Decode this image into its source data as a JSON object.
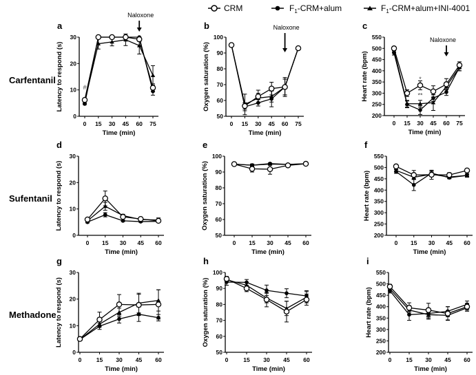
{
  "legend": [
    {
      "key": "crm",
      "label": "CRM"
    },
    {
      "key": "alum",
      "label_main": "F",
      "label_sub": "1",
      "label_rest": "-CRM+alum"
    },
    {
      "key": "ini",
      "label_main": "F",
      "label_sub": "1",
      "label_rest": "-CRM+alum+INI-4001"
    }
  ],
  "rows": [
    {
      "label": "Carfentanil"
    },
    {
      "label": "Sufentanil"
    },
    {
      "label": "Methadone"
    }
  ],
  "chart_data": [
    {
      "id": "a",
      "type": "line",
      "title": "a",
      "xlabel": "Time (min)",
      "ylabel": "Latency to respond (s)",
      "x": [
        0,
        15,
        30,
        45,
        60,
        75
      ],
      "ylim": [
        0,
        30
      ],
      "yticks": [
        0,
        10,
        20,
        30
      ],
      "series": [
        {
          "name": "CRM",
          "key": "crm",
          "values": [
            6.2,
            30,
            30,
            30,
            29.2,
            10.8
          ],
          "err": [
            0.5,
            0,
            0,
            0,
            0.8,
            1.5
          ]
        },
        {
          "name": "F1-CRM+alum",
          "key": "alum",
          "values": [
            4.7,
            30,
            30,
            30,
            30,
            9.5
          ],
          "err": [
            0.3,
            0,
            0,
            0,
            0,
            1.5
          ]
        },
        {
          "name": "F1-CRM+alum+INI-4001",
          "key": "ini",
          "values": [
            5.5,
            27.5,
            28.2,
            29,
            26.8,
            15.5
          ],
          "err": [
            0.5,
            2,
            1.5,
            2.2,
            3.2,
            3.7
          ]
        }
      ],
      "annotations": [
        {
          "text": "Naloxone",
          "type": "arrow",
          "x": 60
        },
        {
          "text": "#",
          "type": "mark",
          "x": 0,
          "y": 11
        }
      ]
    },
    {
      "id": "b",
      "type": "line",
      "title": "b",
      "xlabel": "Time (min)",
      "ylabel": "Oxygen saturation (%)",
      "x": [
        0,
        15,
        30,
        45,
        60,
        75
      ],
      "ylim": [
        50,
        100
      ],
      "yticks": [
        50,
        60,
        70,
        80,
        90,
        100
      ],
      "series": [
        {
          "name": "CRM",
          "key": "crm",
          "values": [
            95,
            56.5,
            62.5,
            67.5,
            68.5,
            93
          ],
          "err": [
            0.5,
            2,
            4,
            4,
            5,
            0.5
          ]
        },
        {
          "name": "F1-CRM+alum",
          "key": "alum",
          "values": [
            95,
            56,
            58.5,
            61,
            68.5,
            93
          ],
          "err": [
            0.5,
            2.5,
            2,
            5,
            5,
            0.5
          ]
        },
        {
          "name": "F1-CRM+alum+INI-4001",
          "key": "ini",
          "values": [
            95,
            57.5,
            61.5,
            62.5,
            68.5,
            93
          ],
          "err": [
            0.5,
            6.5,
            3,
            3.5,
            6,
            0.5
          ]
        }
      ],
      "annotations": [
        {
          "text": "Naloxone",
          "type": "arrow",
          "x": 60
        }
      ]
    },
    {
      "id": "c",
      "type": "line",
      "title": "c",
      "xlabel": "Time (min)",
      "ylabel": "Heart rate (bpm)",
      "x": [
        0,
        15,
        30,
        45,
        60,
        75
      ],
      "ylim": [
        200,
        550
      ],
      "yticks": [
        200,
        250,
        300,
        350,
        400,
        450,
        500,
        550
      ],
      "series": [
        {
          "name": "CRM",
          "key": "crm",
          "values": [
            500,
            300,
            335,
            308,
            340,
            425
          ],
          "err": [
            8,
            15,
            20,
            25,
            25,
            15
          ]
        },
        {
          "name": "F1-CRM+alum",
          "key": "alum",
          "values": [
            480,
            250,
            225,
            278,
            305,
            415
          ],
          "err": [
            10,
            15,
            20,
            15,
            15,
            15
          ]
        },
        {
          "name": "F1-CRM+alum+INI-4001",
          "key": "ini",
          "values": [
            490,
            253,
            253,
            258,
            330,
            415
          ],
          "err": [
            8,
            15,
            15,
            35,
            15,
            15
          ]
        }
      ],
      "annotations": [
        {
          "text": "Naloxone",
          "type": "arrow",
          "x": 60
        },
        {
          "text": "*",
          "type": "mark",
          "x": 30,
          "y": 362
        },
        {
          "text": "**",
          "type": "mark",
          "x": 30,
          "y": 290
        }
      ]
    },
    {
      "id": "d",
      "type": "line",
      "title": "d",
      "xlabel": "Time (min)",
      "ylabel": "Latency to respond (s)",
      "x": [
        0,
        15,
        30,
        45,
        60
      ],
      "ylim": [
        0,
        30
      ],
      "yticks": [
        0,
        10,
        20,
        30
      ],
      "series": [
        {
          "name": "CRM",
          "key": "crm",
          "values": [
            6,
            14,
            7,
            6.2,
            5.5
          ],
          "err": [
            0.3,
            2.8,
            0.6,
            0.3,
            0.5
          ]
        },
        {
          "name": "F1-CRM+alum",
          "key": "alum",
          "values": [
            5,
            7.8,
            5.5,
            5.2,
            5.3
          ],
          "err": [
            0.3,
            0.8,
            0.3,
            0.3,
            0.3
          ]
        },
        {
          "name": "F1-CRM+alum+INI-4001",
          "key": "ini",
          "values": [
            5.5,
            11,
            7.5,
            6,
            5.8
          ],
          "err": [
            0.3,
            1.5,
            0.5,
            0.3,
            0.8
          ]
        }
      ],
      "annotations": []
    },
    {
      "id": "e",
      "type": "line",
      "title": "e",
      "xlabel": "Time (min)",
      "ylabel": "Oxygen saturation (%)",
      "x": [
        0,
        15,
        30,
        45,
        60
      ],
      "ylim": [
        50,
        100
      ],
      "yticks": [
        50,
        60,
        70,
        80,
        90,
        100
      ],
      "series": [
        {
          "name": "CRM",
          "key": "crm",
          "values": [
            95,
            92,
            91.8,
            94.2,
            95.2
          ],
          "err": [
            0.5,
            2,
            3.2,
            0.5,
            0.5
          ]
        },
        {
          "name": "F1-CRM+alum",
          "key": "alum",
          "values": [
            95,
            94.3,
            95.3,
            94.8,
            95.2
          ],
          "err": [
            0.5,
            0.8,
            0.5,
            0.5,
            0.5
          ]
        },
        {
          "name": "F1-CRM+alum+INI-4001",
          "key": "ini",
          "values": [
            95,
            94.3,
            95,
            94.8,
            95.2
          ],
          "err": [
            0.5,
            0.5,
            0.5,
            0.5,
            0.5
          ]
        }
      ],
      "annotations": []
    },
    {
      "id": "f",
      "type": "line",
      "title": "f",
      "xlabel": "Time (min)",
      "ylabel": "Heart rate (bpm)",
      "x": [
        0,
        15,
        30,
        45,
        60
      ],
      "ylim": [
        200,
        550
      ],
      "yticks": [
        200,
        250,
        300,
        350,
        400,
        450,
        500,
        550
      ],
      "series": [
        {
          "name": "CRM",
          "key": "crm",
          "values": [
            505,
            467,
            468,
            467,
            487
          ],
          "err": [
            5,
            20,
            20,
            10,
            5
          ]
        },
        {
          "name": "F1-CRM+alum",
          "key": "alum",
          "values": [
            482,
            423,
            475,
            455,
            465
          ],
          "err": [
            8,
            25,
            10,
            5,
            8
          ]
        },
        {
          "name": "F1-CRM+alum+INI-4001",
          "key": "ini",
          "values": [
            487,
            457,
            470,
            458,
            465
          ],
          "err": [
            5,
            10,
            10,
            5,
            5
          ]
        }
      ],
      "annotations": []
    },
    {
      "id": "g",
      "type": "line",
      "title": "g",
      "xlabel": "Time (min)",
      "ylabel": "Latency to respond (s)",
      "x": [
        0,
        15,
        30,
        45,
        60
      ],
      "ylim": [
        0,
        30
      ],
      "yticks": [
        0,
        10,
        20,
        30
      ],
      "series": [
        {
          "name": "CRM",
          "key": "crm",
          "values": [
            5,
            12.3,
            18,
            17.8,
            18
          ],
          "err": [
            0.5,
            2.8,
            3.7,
            4,
            5.5
          ]
        },
        {
          "name": "F1-CRM+alum",
          "key": "alum",
          "values": [
            4.8,
            9.8,
            12.5,
            14.3,
            13
          ],
          "err": [
            0.3,
            1.2,
            1.5,
            2.7,
            1.2
          ]
        },
        {
          "name": "F1-CRM+alum+INI-4001",
          "key": "ini",
          "values": [
            4.8,
            10.6,
            15,
            18.5,
            19.5
          ],
          "err": [
            0.3,
            1,
            1.6,
            3.7,
            4
          ]
        }
      ],
      "annotations": []
    },
    {
      "id": "h",
      "type": "line",
      "title": "h",
      "xlabel": "Time (min)",
      "ylabel": "Oxygen saturation (%)",
      "x": [
        0,
        15,
        30,
        45,
        60
      ],
      "ylim": [
        50,
        100
      ],
      "yticks": [
        50,
        60,
        70,
        80,
        90,
        100
      ],
      "series": [
        {
          "name": "CRM",
          "key": "crm",
          "values": [
            96,
            90,
            83,
            75.5,
            83
          ],
          "err": [
            1.5,
            2,
            4.5,
            6.5,
            3.5
          ]
        },
        {
          "name": "F1-CRM+alum",
          "key": "alum",
          "values": [
            94,
            93.8,
            88.8,
            87,
            85.3
          ],
          "err": [
            2,
            1.8,
            3.3,
            2.8,
            3.3
          ]
        },
        {
          "name": "F1-CRM+alum+INI-4001",
          "key": "ini",
          "values": [
            95.5,
            92,
            84,
            77.5,
            84.5
          ],
          "err": [
            1.5,
            1.8,
            3,
            4.5,
            3.5
          ]
        }
      ],
      "annotations": []
    },
    {
      "id": "i",
      "type": "line",
      "title": "i",
      "xlabel": "Time (min)",
      "ylabel": "Heart rate (bpm)",
      "x": [
        0,
        15,
        30,
        45,
        60
      ],
      "ylim": [
        200,
        550
      ],
      "yticks": [
        200,
        250,
        300,
        350,
        400,
        450,
        500,
        550
      ],
      "series": [
        {
          "name": "CRM",
          "key": "crm",
          "values": [
            488,
            395,
            385,
            370,
            400
          ],
          "err": [
            10,
            22,
            30,
            30,
            15
          ]
        },
        {
          "name": "F1-CRM+alum",
          "key": "alum",
          "values": [
            470,
            365,
            370,
            380,
            410
          ],
          "err": [
            10,
            25,
            20,
            20,
            15
          ]
        },
        {
          "name": "F1-CRM+alum+INI-4001",
          "key": "ini",
          "values": [
            478,
            385,
            365,
            362,
            395
          ],
          "err": [
            10,
            20,
            20,
            20,
            15
          ]
        }
      ],
      "annotations": []
    }
  ]
}
